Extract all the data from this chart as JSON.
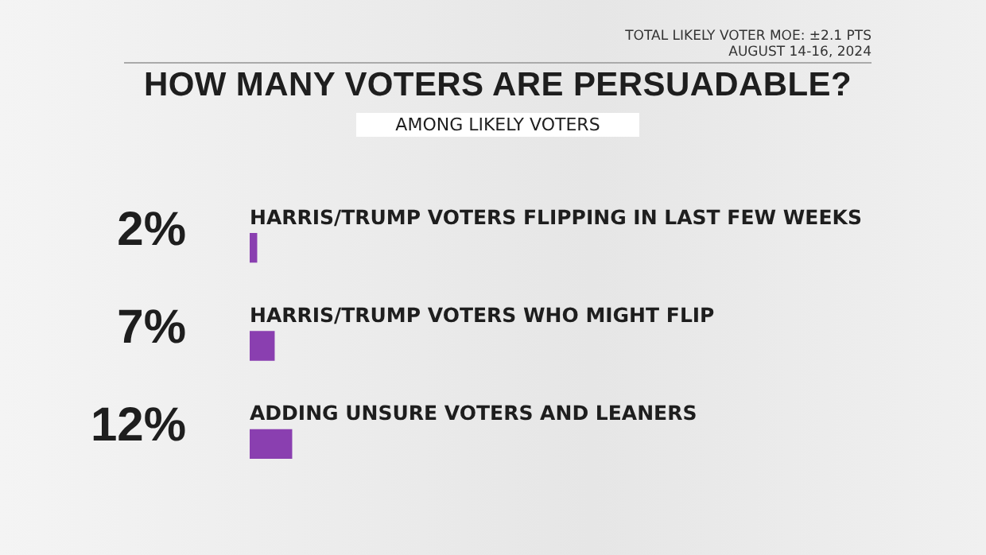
{
  "chart_data": {
    "type": "bar",
    "orientation": "horizontal",
    "title": "HOW MANY VOTERS ARE PERSUADABLE?",
    "subtitle": "AMONG LIKELY VOTERS",
    "annotations": [
      "TOTAL LIKELY VOTER MOE: ±2.1 PTS",
      "AUGUST 14-16, 2024"
    ],
    "categories": [
      "HARRIS/TRUMP VOTERS FLIPPING IN LAST FEW WEEKS",
      "HARRIS/TRUMP VOTERS WHO MIGHT FLIP",
      "ADDING UNSURE VOTERS AND LEANERS"
    ],
    "values": [
      2,
      7,
      12
    ],
    "value_labels": [
      "2%",
      "7%",
      "12%"
    ],
    "color": "#8a3fb0",
    "legend": false,
    "tick_labels": false
  }
}
